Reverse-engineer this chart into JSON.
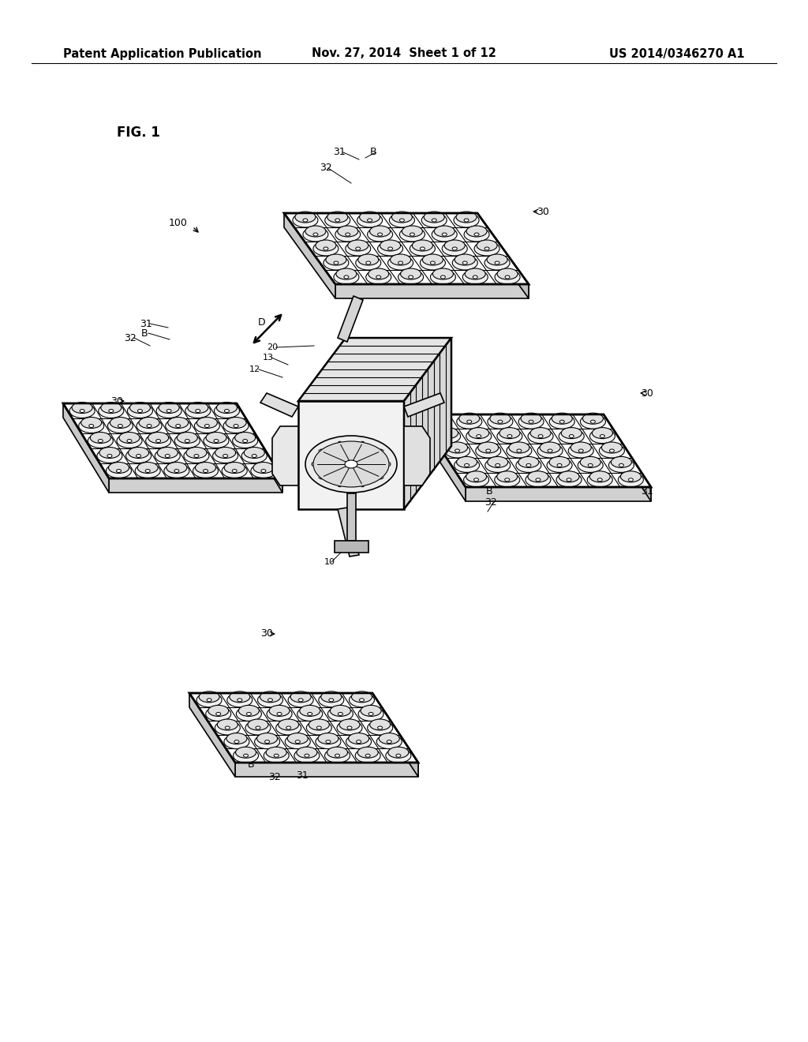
{
  "background_color": "#ffffff",
  "header_left": "Patent Application Publication",
  "header_center": "Nov. 27, 2014  Sheet 1 of 12",
  "header_right": "US 2014/0346270 A1",
  "fig_label": "FIG. 1",
  "header_fontsize": 10.5
}
